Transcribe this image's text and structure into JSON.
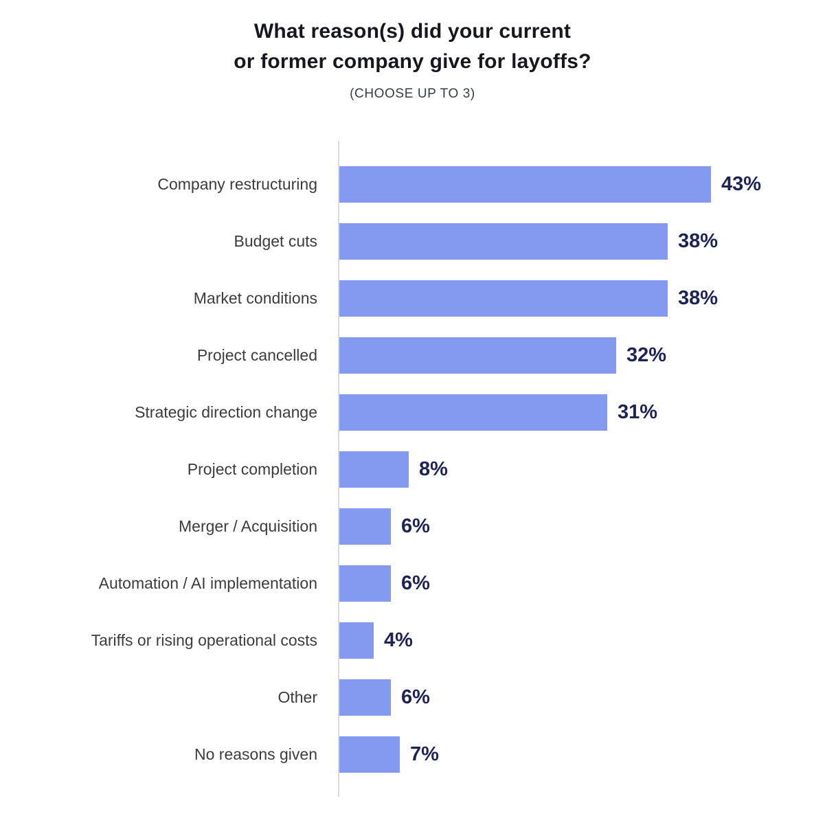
{
  "title": {
    "line1": "What reason(s) did your current",
    "line2": "or former company give for layoffs?"
  },
  "subtitle": "(CHOOSE UP TO 3)",
  "colors": {
    "bar_fill": "#8499F0",
    "value_label": "#1D2257",
    "category_label": "#3C3C3C",
    "axis_line": "#D9DADE",
    "title_text": "#16171F",
    "subtitle_text": "#353B46",
    "background": "#FFFFFF"
  },
  "chart_data": {
    "type": "bar",
    "orientation": "horizontal",
    "title": "What reason(s) did your current or former company give for layoffs?",
    "subtitle": "(CHOOSE UP TO 3)",
    "categories": [
      "Company restructuring",
      "Budget cuts",
      "Market conditions",
      "Project cancelled",
      "Strategic direction change",
      "Project completion",
      "Merger / Acquisition",
      "Automation / AI implementation",
      "Tariffs or rising operational costs",
      "Other",
      "No reasons given"
    ],
    "values": [
      43,
      38,
      38,
      32,
      31,
      8,
      6,
      6,
      4,
      6,
      7
    ],
    "value_labels": [
      "43%",
      "38%",
      "38%",
      "32%",
      "31%",
      "8%",
      "6%",
      "6%",
      "4%",
      "6%",
      "7%"
    ],
    "unit": "percent",
    "xlim": [
      0,
      43
    ],
    "grid": false,
    "legend": false,
    "value_label_position": "end-of-bar",
    "bar_color": "#8499F0"
  }
}
